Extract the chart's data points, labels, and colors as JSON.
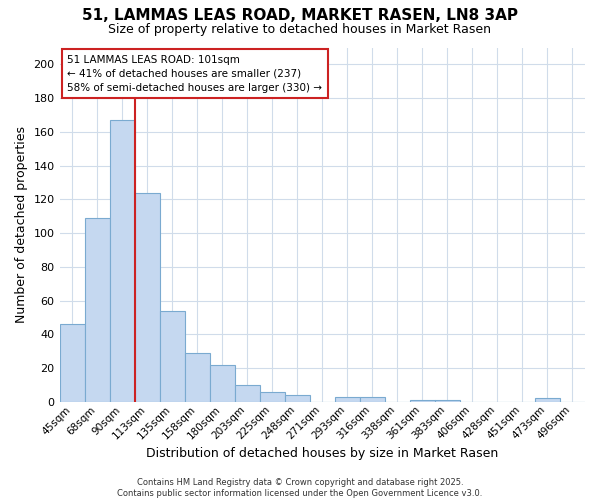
{
  "title1": "51, LAMMAS LEAS ROAD, MARKET RASEN, LN8 3AP",
  "title2": "Size of property relative to detached houses in Market Rasen",
  "xlabel": "Distribution of detached houses by size in Market Rasen",
  "ylabel": "Number of detached properties",
  "categories": [
    "45sqm",
    "68sqm",
    "90sqm",
    "113sqm",
    "135sqm",
    "158sqm",
    "180sqm",
    "203sqm",
    "225sqm",
    "248sqm",
    "271sqm",
    "293sqm",
    "316sqm",
    "338sqm",
    "361sqm",
    "383sqm",
    "406sqm",
    "428sqm",
    "451sqm",
    "473sqm",
    "496sqm"
  ],
  "values": [
    46,
    109,
    167,
    124,
    54,
    29,
    22,
    10,
    6,
    4,
    0,
    3,
    3,
    0,
    1,
    1,
    0,
    0,
    0,
    2,
    0
  ],
  "bar_color": "#c5d8f0",
  "bar_edge_color": "#7aaad0",
  "vline_color": "#cc2222",
  "annotation_line1": "51 LAMMAS LEAS ROAD: 101sqm",
  "annotation_line2": "← 41% of detached houses are smaller (237)",
  "annotation_line3": "58% of semi-detached houses are larger (330) →",
  "footer": "Contains HM Land Registry data © Crown copyright and database right 2025.\nContains public sector information licensed under the Open Government Licence v3.0.",
  "bg_color": "#ffffff",
  "plot_bg_color": "#ffffff",
  "grid_color": "#d0dcea",
  "ylim": [
    0,
    210
  ],
  "yticks": [
    0,
    20,
    40,
    60,
    80,
    100,
    120,
    140,
    160,
    180,
    200
  ]
}
